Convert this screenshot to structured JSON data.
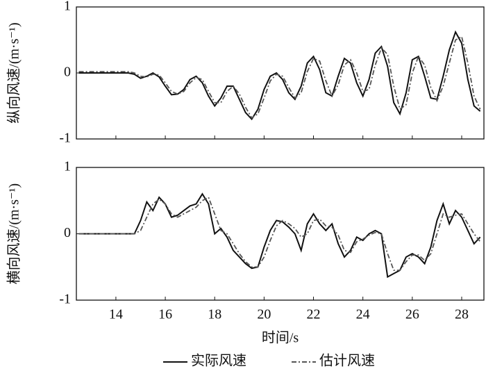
{
  "chart_data": [
    {
      "type": "line",
      "ylabel": "纵向风速/(m·s⁻¹)",
      "x": [
        12.5,
        12.75,
        13,
        13.25,
        13.5,
        13.75,
        14,
        14.25,
        14.5,
        14.75,
        15,
        15.25,
        15.5,
        15.75,
        16,
        16.25,
        16.5,
        16.75,
        17,
        17.25,
        17.5,
        17.75,
        18,
        18.25,
        18.5,
        18.75,
        19,
        19.25,
        19.5,
        19.75,
        20,
        20.25,
        20.5,
        20.75,
        21,
        21.25,
        21.5,
        21.75,
        22,
        22.25,
        22.5,
        22.75,
        23,
        23.25,
        23.5,
        23.75,
        24,
        24.25,
        24.5,
        24.75,
        25,
        25.25,
        25.5,
        25.75,
        26,
        26.25,
        26.5,
        26.75,
        27,
        27.25,
        27.5,
        27.75,
        28,
        28.25,
        28.5,
        28.75
      ],
      "series": [
        {
          "color": "#111111",
          "style": "solid",
          "values": [
            0,
            0,
            0,
            0,
            0,
            0,
            0,
            0,
            0,
            -0.02,
            -0.08,
            -0.05,
            0,
            -0.06,
            -0.2,
            -0.33,
            -0.32,
            -0.25,
            -0.1,
            -0.05,
            -0.15,
            -0.35,
            -0.5,
            -0.38,
            -0.2,
            -0.2,
            -0.4,
            -0.6,
            -0.7,
            -0.55,
            -0.25,
            -0.05,
            0,
            -0.1,
            -0.3,
            -0.4,
            -0.2,
            0.15,
            0.25,
            0.05,
            -0.3,
            -0.35,
            -0.05,
            0.22,
            0.15,
            -0.15,
            -0.35,
            -0.1,
            0.3,
            0.4,
            0.1,
            -0.45,
            -0.62,
            -0.3,
            0.2,
            0.25,
            -0.05,
            -0.38,
            -0.4,
            -0.05,
            0.35,
            0.62,
            0.45,
            -0.1,
            -0.5,
            -0.58
          ]
        },
        {
          "color": "#555555",
          "style": "dashdot",
          "values": [
            0.02,
            0.02,
            0.02,
            0.02,
            0.02,
            0.02,
            0.02,
            0.02,
            0.02,
            0,
            -0.05,
            -0.06,
            -0.02,
            -0.03,
            -0.15,
            -0.28,
            -0.32,
            -0.28,
            -0.15,
            -0.07,
            -0.1,
            -0.28,
            -0.45,
            -0.45,
            -0.28,
            -0.2,
            -0.32,
            -0.52,
            -0.68,
            -0.62,
            -0.38,
            -0.12,
            -0.02,
            -0.05,
            -0.22,
            -0.38,
            -0.3,
            0.02,
            0.22,
            0.18,
            -0.12,
            -0.35,
            -0.18,
            0.12,
            0.2,
            0,
            -0.28,
            -0.25,
            0.12,
            0.38,
            0.28,
            -0.2,
            -0.55,
            -0.48,
            0,
            0.25,
            0.12,
            -0.22,
            -0.42,
            -0.2,
            0.15,
            0.5,
            0.55,
            0.15,
            -0.35,
            -0.55
          ]
        }
      ],
      "xlim": [
        12.4,
        28.9
      ],
      "xticks": [
        14,
        16,
        18,
        20,
        22,
        24,
        26,
        28
      ],
      "ylim": [
        -1,
        1
      ],
      "yticks": [
        -1,
        0,
        1
      ]
    },
    {
      "type": "line",
      "ylabel": "横向风速/(m·s⁻¹)",
      "xlabel": "时间/s",
      "x": [
        12.5,
        12.75,
        13,
        13.25,
        13.5,
        13.75,
        14,
        14.25,
        14.5,
        14.75,
        15,
        15.25,
        15.5,
        15.75,
        16,
        16.25,
        16.5,
        16.75,
        17,
        17.25,
        17.5,
        17.75,
        18,
        18.25,
        18.5,
        18.75,
        19,
        19.25,
        19.5,
        19.75,
        20,
        20.25,
        20.5,
        20.75,
        21,
        21.25,
        21.5,
        21.75,
        22,
        22.25,
        22.5,
        22.75,
        23,
        23.25,
        23.5,
        23.75,
        24,
        24.25,
        24.5,
        24.75,
        25,
        25.25,
        25.5,
        25.75,
        26,
        26.25,
        26.5,
        26.75,
        27,
        27.25,
        27.5,
        27.75,
        28,
        28.25,
        28.5,
        28.75
      ],
      "series": [
        {
          "name": "实际风速",
          "color": "#111111",
          "style": "solid",
          "values": [
            0,
            0,
            0,
            0,
            0,
            0,
            0,
            0,
            0,
            0,
            0.2,
            0.48,
            0.35,
            0.55,
            0.45,
            0.25,
            0.28,
            0.35,
            0.42,
            0.45,
            0.6,
            0.45,
            0,
            0.08,
            -0.05,
            -0.25,
            -0.35,
            -0.45,
            -0.52,
            -0.5,
            -0.2,
            0.05,
            0.2,
            0.18,
            0.1,
            0,
            -0.25,
            0.15,
            0.3,
            0.15,
            0.05,
            0.15,
            -0.15,
            -0.35,
            -0.25,
            -0.05,
            -0.1,
            0,
            0.05,
            0,
            -0.65,
            -0.6,
            -0.55,
            -0.35,
            -0.3,
            -0.35,
            -0.45,
            -0.2,
            0.2,
            0.45,
            0.15,
            0.35,
            0.25,
            0.05,
            -0.15,
            -0.05
          ]
        },
        {
          "name": "估计风速",
          "color": "#555555",
          "style": "dashdot",
          "values": [
            0,
            0,
            0,
            0,
            0,
            0,
            0,
            0,
            0,
            0,
            0.05,
            0.25,
            0.45,
            0.52,
            0.45,
            0.3,
            0.25,
            0.3,
            0.35,
            0.4,
            0.5,
            0.55,
            0.3,
            0.05,
            0,
            -0.15,
            -0.3,
            -0.42,
            -0.5,
            -0.5,
            -0.35,
            -0.1,
            0.12,
            0.2,
            0.15,
            0.08,
            -0.05,
            0,
            0.2,
            0.22,
            0.12,
            0.1,
            -0.02,
            -0.25,
            -0.28,
            -0.12,
            -0.08,
            -0.02,
            0.02,
            0,
            -0.3,
            -0.55,
            -0.55,
            -0.42,
            -0.32,
            -0.32,
            -0.4,
            -0.3,
            0,
            0.3,
            0.25,
            0.28,
            0.3,
            0.15,
            0,
            -0.12
          ]
        }
      ],
      "xlim": [
        12.4,
        28.9
      ],
      "xticks": [
        14,
        16,
        18,
        20,
        22,
        24,
        26,
        28
      ],
      "ylim": [
        -1,
        1
      ],
      "yticks": [
        -1,
        0,
        1
      ]
    }
  ]
}
